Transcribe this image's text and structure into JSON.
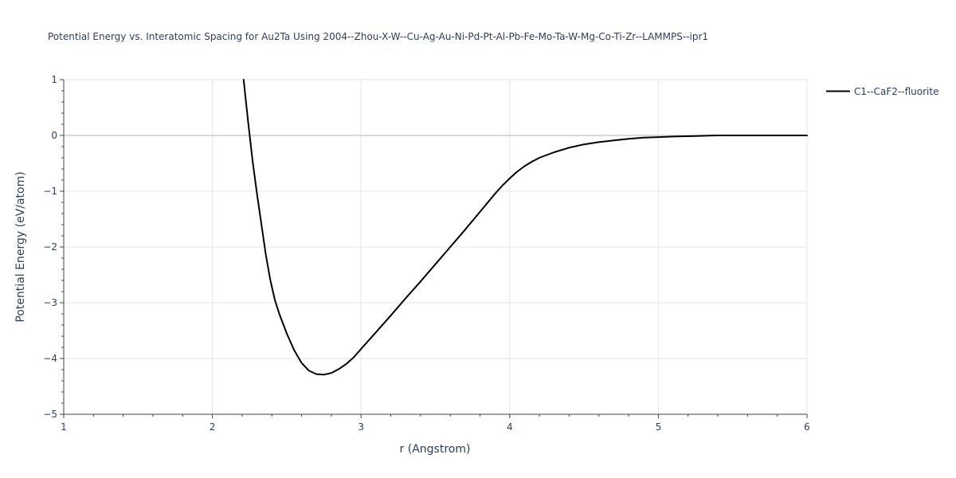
{
  "chart_data": {
    "type": "line",
    "title": "Potential Energy vs. Interatomic Spacing for Au2Ta Using 2004--Zhou-X-W--Cu-Ag-Au-Ni-Pd-Pt-Al-Pb-Fe-Mo-Ta-W-Mg-Co-Ti-Zr--LAMMPS--ipr1",
    "xlabel": "r (Angstrom)",
    "ylabel": "Potential Energy (eV/atom)",
    "xlim": [
      1,
      6
    ],
    "ylim": [
      -5,
      1
    ],
    "xticks": [
      1,
      2,
      3,
      4,
      5,
      6
    ],
    "yticks": [
      1,
      0,
      -1,
      -2,
      -3,
      -4,
      -5
    ],
    "xtick_labels": [
      "1",
      "2",
      "3",
      "4",
      "5",
      "6"
    ],
    "ytick_labels": [
      "1",
      "0",
      "−1",
      "−2",
      "−3",
      "−4",
      "−5"
    ],
    "grid": true,
    "legend_position": "top-right",
    "series": [
      {
        "name": "C1--CaF2--fluorite",
        "color": "#000000",
        "x": [
          2.21,
          2.24,
          2.27,
          2.3,
          2.33,
          2.36,
          2.39,
          2.42,
          2.45,
          2.5,
          2.55,
          2.6,
          2.65,
          2.7,
          2.75,
          2.8,
          2.85,
          2.9,
          2.95,
          3.0,
          3.1,
          3.2,
          3.3,
          3.4,
          3.5,
          3.6,
          3.7,
          3.8,
          3.9,
          3.95,
          4.0,
          4.05,
          4.1,
          4.15,
          4.2,
          4.3,
          4.4,
          4.5,
          4.6,
          4.7,
          4.8,
          4.9,
          5.0,
          5.1,
          5.25,
          5.4,
          5.6,
          5.8,
          6.0
        ],
        "y": [
          1.0,
          0.25,
          -0.45,
          -1.05,
          -1.6,
          -2.15,
          -2.6,
          -2.95,
          -3.2,
          -3.55,
          -3.85,
          -4.08,
          -4.22,
          -4.28,
          -4.29,
          -4.26,
          -4.19,
          -4.1,
          -3.98,
          -3.83,
          -3.53,
          -3.23,
          -2.92,
          -2.62,
          -2.31,
          -2.0,
          -1.69,
          -1.37,
          -1.05,
          -0.9,
          -0.77,
          -0.65,
          -0.55,
          -0.47,
          -0.4,
          -0.3,
          -0.22,
          -0.16,
          -0.12,
          -0.09,
          -0.06,
          -0.04,
          -0.03,
          -0.02,
          -0.01,
          0.0,
          0.0,
          0.0,
          0.0
        ]
      }
    ]
  }
}
